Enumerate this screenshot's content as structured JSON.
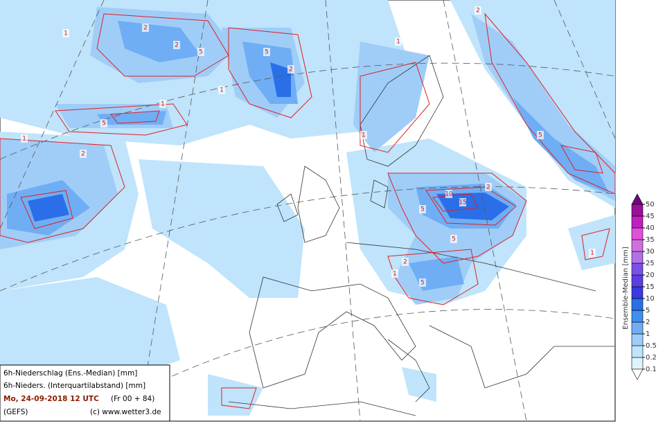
{
  "map": {
    "info": {
      "line1": "6h-Niederschlag (Ens.-Median) [mm]",
      "line2": "6h-Nieders. (Interquartilabstand) [mm]",
      "date": "Mo, 24-09-2018  12 UTC",
      "run": "(Fr 00 + 84)",
      "model": "(GEFS)",
      "copyright": "(c) www.wetter3.de"
    },
    "colorbar": {
      "title": "Ensemble-Median [mm]",
      "levels": [
        0.1,
        0.2,
        0.5,
        1,
        2,
        5,
        10,
        15,
        20,
        25,
        30,
        35,
        40,
        45,
        50
      ],
      "colors": [
        "#dff3fd",
        "#bfe4fb",
        "#9fcdf8",
        "#6faef5",
        "#3f8fef",
        "#2b6fe8",
        "#3a3ae0",
        "#5a40e0",
        "#7a50e8",
        "#b070e8",
        "#d070e0",
        "#e050d8",
        "#c020c0",
        "#9a109a"
      ],
      "over_color": "#6a0a7a",
      "under_color": "#ffffff"
    },
    "contour_labels": [
      "1",
      "2",
      "2",
      "5",
      "5",
      "1",
      "2",
      "1",
      "5",
      "1",
      "2",
      "10",
      "15",
      "5",
      "2",
      "5",
      "2",
      "1",
      "5",
      "1",
      "1",
      "2",
      "5",
      "1"
    ]
  }
}
